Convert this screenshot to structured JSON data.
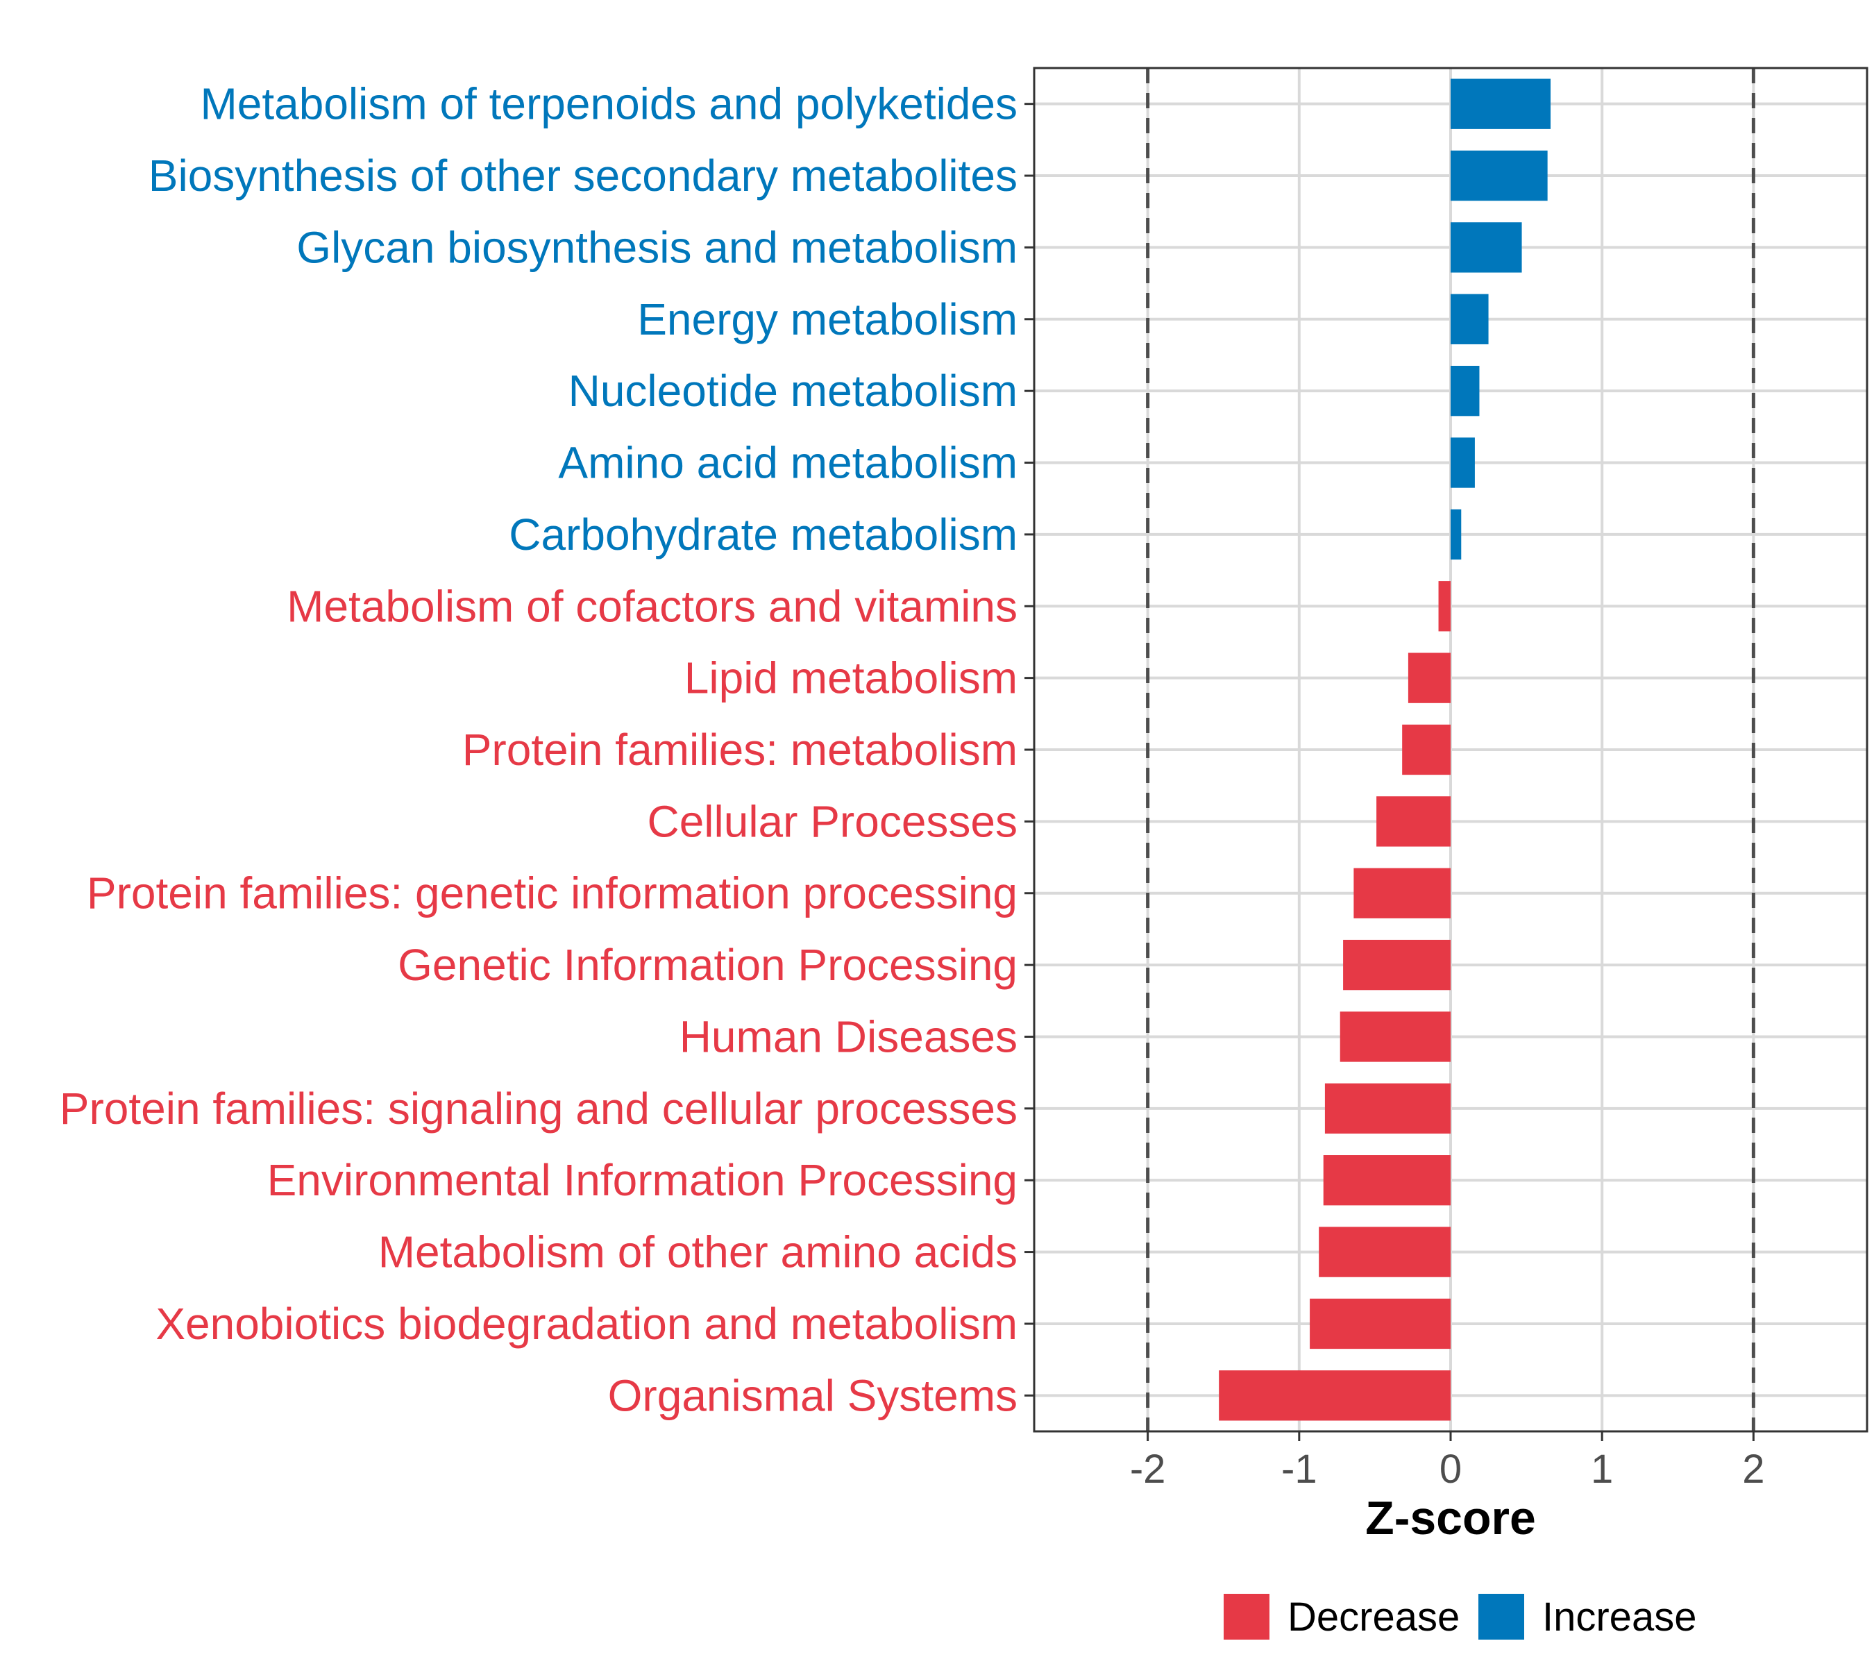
{
  "chart_data": {
    "type": "bar",
    "orientation": "horizontal",
    "title": "",
    "xlabel": "Z-score",
    "ylabel": "",
    "xlim": [
      -2.75,
      2.75
    ],
    "xticks": [
      -2,
      -1,
      0,
      1,
      2
    ],
    "xtick_labels": [
      "-2",
      "-1",
      "0",
      "1",
      "2"
    ],
    "reference_lines": [
      -2,
      2
    ],
    "grid": true,
    "categories": [
      "Metabolism of terpenoids and polyketides",
      "Biosynthesis of other secondary metabolites",
      "Glycan biosynthesis and metabolism",
      "Energy metabolism",
      "Nucleotide metabolism",
      "Amino acid metabolism",
      "Carbohydrate metabolism",
      "Metabolism of cofactors and vitamins",
      "Lipid metabolism",
      "Protein families: metabolism",
      "Cellular Processes",
      "Protein families: genetic information processing",
      "Genetic Information Processing",
      "Human Diseases",
      "Protein families: signaling and cellular processes",
      "Environmental Information Processing",
      "Metabolism of other amino acids",
      "Xenobiotics biodegradation and metabolism",
      "Organismal Systems"
    ],
    "values": [
      0.66,
      0.64,
      0.47,
      0.25,
      0.19,
      0.16,
      0.07,
      -0.08,
      -0.28,
      -0.32,
      -0.49,
      -0.64,
      -0.71,
      -0.73,
      -0.83,
      -0.84,
      -0.87,
      -0.93,
      -1.53
    ],
    "groups": [
      "Increase",
      "Increase",
      "Increase",
      "Increase",
      "Increase",
      "Increase",
      "Increase",
      "Decrease",
      "Decrease",
      "Decrease",
      "Decrease",
      "Decrease",
      "Decrease",
      "Decrease",
      "Decrease",
      "Decrease",
      "Decrease",
      "Decrease",
      "Decrease"
    ],
    "legend": {
      "placement": "bottom",
      "entries": [
        {
          "label": "Decrease",
          "color": "#E63946"
        },
        {
          "label": "Increase",
          "color": "#0077BB"
        }
      ]
    }
  },
  "colors": {
    "decrease": "#E63946",
    "increase": "#0077BB",
    "grid": "#D9D9D9",
    "reference_line": "#4D4D4D",
    "panel_border": "#333333"
  }
}
